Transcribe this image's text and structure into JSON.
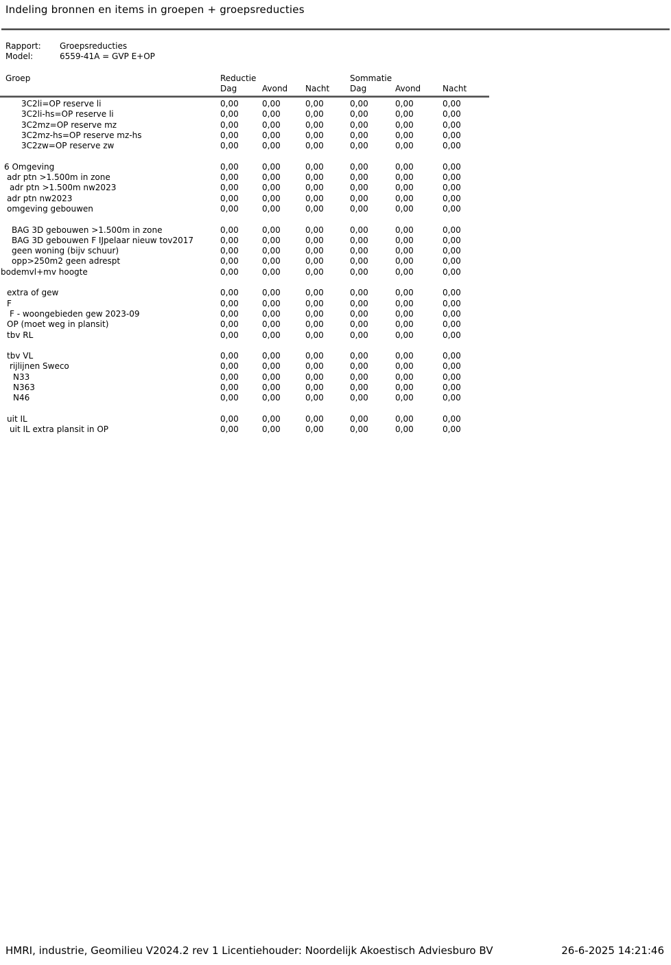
{
  "title": "Indeling bronnen en items in groepen + groepsreducties",
  "meta": {
    "rapport_label": "Rapport:",
    "rapport_value": "Groepsreducties",
    "model_label": "Model:",
    "model_value": "6559-41A = GVP E+OP"
  },
  "table": {
    "group_header": "Groep",
    "section_headers": {
      "reductie": "Reductie",
      "sommatie": "Sommatie"
    },
    "sub_headers": [
      "Dag",
      "Avond",
      "Nacht",
      "Dag",
      "Avond",
      "Nacht"
    ],
    "rows": [
      {
        "name": "3C2li=OP reserve li",
        "indent": 31,
        "values": [
          "0,00",
          "0,00",
          "0,00",
          "0,00",
          "0,00",
          "0,00"
        ]
      },
      {
        "name": "3C2li-hs=OP reserve li",
        "indent": 31,
        "values": [
          "0,00",
          "0,00",
          "0,00",
          "0,00",
          "0,00",
          "0,00"
        ]
      },
      {
        "name": "3C2mz=OP reserve mz",
        "indent": 31,
        "values": [
          "0,00",
          "0,00",
          "0,00",
          "0,00",
          "0,00",
          "0,00"
        ]
      },
      {
        "name": "3C2mz-hs=OP reserve mz-hs",
        "indent": 31,
        "values": [
          "0,00",
          "0,00",
          "0,00",
          "0,00",
          "0,00",
          "0,00"
        ]
      },
      {
        "name": "3C2zw=OP reserve zw",
        "indent": 31,
        "values": [
          "0,00",
          "0,00",
          "0,00",
          "0,00",
          "0,00",
          "0,00"
        ]
      },
      {
        "blank": true
      },
      {
        "name": "6 Omgeving",
        "indent": 6,
        "values": [
          "0,00",
          "0,00",
          "0,00",
          "0,00",
          "0,00",
          "0,00"
        ]
      },
      {
        "name": "adr ptn >1.500m in zone",
        "indent": 10,
        "values": [
          "0,00",
          "0,00",
          "0,00",
          "0,00",
          "0,00",
          "0,00"
        ]
      },
      {
        "name": "adr ptn >1.500m nw2023",
        "indent": 14,
        "values": [
          "0,00",
          "0,00",
          "0,00",
          "0,00",
          "0,00",
          "0,00"
        ]
      },
      {
        "name": "adr ptn nw2023",
        "indent": 10,
        "values": [
          "0,00",
          "0,00",
          "0,00",
          "0,00",
          "0,00",
          "0,00"
        ]
      },
      {
        "name": "omgeving gebouwen",
        "indent": 10,
        "values": [
          "0,00",
          "0,00",
          "0,00",
          "0,00",
          "0,00",
          "0,00"
        ]
      },
      {
        "blank": true
      },
      {
        "name": "BAG 3D gebouwen >1.500m in zone",
        "indent": 17,
        "values": [
          "0,00",
          "0,00",
          "0,00",
          "0,00",
          "0,00",
          "0,00"
        ]
      },
      {
        "name": "BAG 3D gebouwen F IJpelaar nieuw tov2017",
        "indent": 17,
        "values": [
          "0,00",
          "0,00",
          "0,00",
          "0,00",
          "0,00",
          "0,00"
        ]
      },
      {
        "name": "geen woning (bijv schuur)",
        "indent": 17,
        "values": [
          "0,00",
          "0,00",
          "0,00",
          "0,00",
          "0,00",
          "0,00"
        ]
      },
      {
        "name": "opp>250m2 geen adrespt",
        "indent": 17,
        "values": [
          "0,00",
          "0,00",
          "0,00",
          "0,00",
          "0,00",
          "0,00"
        ]
      },
      {
        "name": "bodemvl+mv hoogte",
        "indent": 1,
        "values": [
          "0,00",
          "0,00",
          "0,00",
          "0,00",
          "0,00",
          "0,00"
        ]
      },
      {
        "blank": true
      },
      {
        "name": "extra of gew",
        "indent": 10,
        "values": [
          "0,00",
          "0,00",
          "0,00",
          "0,00",
          "0,00",
          "0,00"
        ]
      },
      {
        "name": "F",
        "indent": 10,
        "values": [
          "0,00",
          "0,00",
          "0,00",
          "0,00",
          "0,00",
          "0,00"
        ]
      },
      {
        "name": "F - woongebieden gew 2023-09",
        "indent": 14,
        "values": [
          "0,00",
          "0,00",
          "0,00",
          "0,00",
          "0,00",
          "0,00"
        ]
      },
      {
        "name": "OP (moet weg in plansit)",
        "indent": 10,
        "values": [
          "0,00",
          "0,00",
          "0,00",
          "0,00",
          "0,00",
          "0,00"
        ]
      },
      {
        "name": "tbv RL",
        "indent": 10,
        "values": [
          "0,00",
          "0,00",
          "0,00",
          "0,00",
          "0,00",
          "0,00"
        ]
      },
      {
        "blank": true
      },
      {
        "name": "tbv VL",
        "indent": 10,
        "values": [
          "0,00",
          "0,00",
          "0,00",
          "0,00",
          "0,00",
          "0,00"
        ]
      },
      {
        "name": "rijlijnen Sweco",
        "indent": 14,
        "values": [
          "0,00",
          "0,00",
          "0,00",
          "0,00",
          "0,00",
          "0,00"
        ]
      },
      {
        "name": "N33",
        "indent": 19,
        "values": [
          "0,00",
          "0,00",
          "0,00",
          "0,00",
          "0,00",
          "0,00"
        ]
      },
      {
        "name": "N363",
        "indent": 19,
        "values": [
          "0,00",
          "0,00",
          "0,00",
          "0,00",
          "0,00",
          "0,00"
        ]
      },
      {
        "name": "N46",
        "indent": 19,
        "values": [
          "0,00",
          "0,00",
          "0,00",
          "0,00",
          "0,00",
          "0,00"
        ]
      },
      {
        "blank": true
      },
      {
        "name": "uit IL",
        "indent": 10,
        "values": [
          "0,00",
          "0,00",
          "0,00",
          "0,00",
          "0,00",
          "0,00"
        ]
      },
      {
        "name": "uit IL extra plansit in OP",
        "indent": 14,
        "values": [
          "0,00",
          "0,00",
          "0,00",
          "0,00",
          "0,00",
          "0,00"
        ]
      }
    ]
  },
  "footer": {
    "left": "HMRI, industrie, Geomilieu V2024.2 rev 1 Licentiehouder: Noordelijk Akoestisch Adviesburo BV",
    "right": "26-6-2025 14:21:46"
  }
}
